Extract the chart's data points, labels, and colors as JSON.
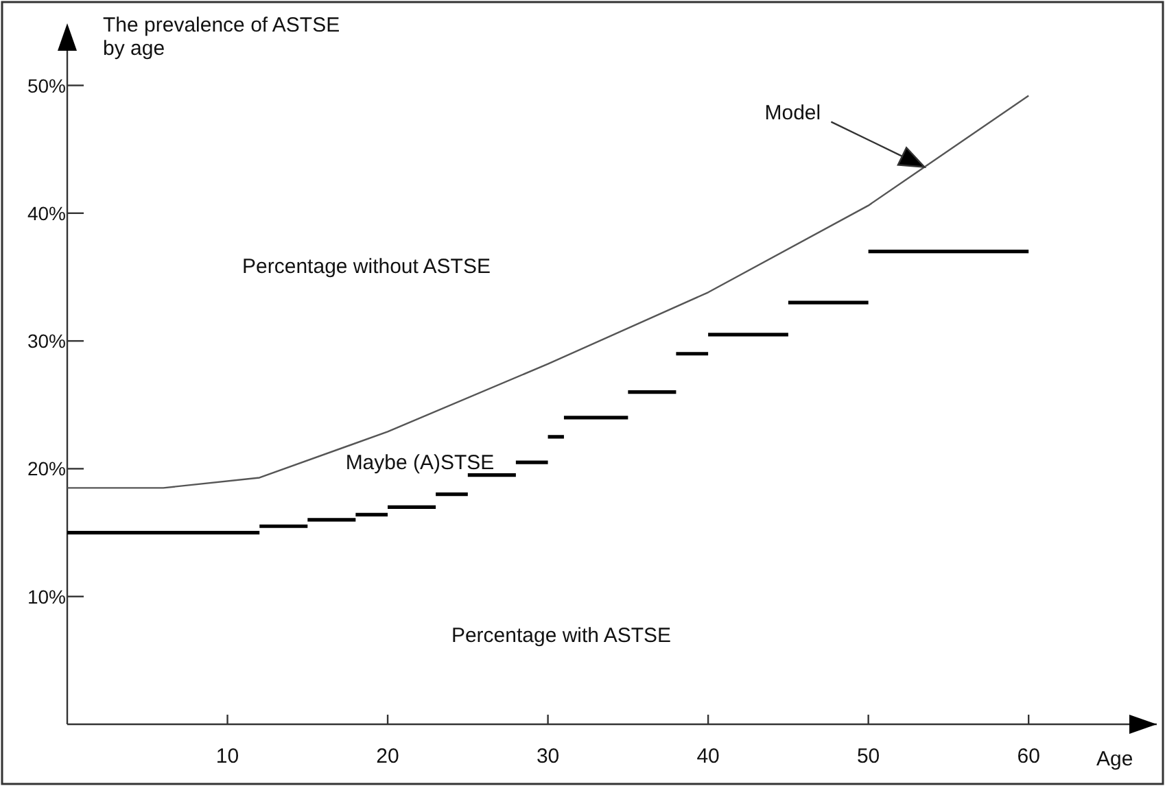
{
  "chart_data": {
    "type": "line",
    "ylabel": "The prevalence of ASTSE\nby age",
    "xlabel": "Age",
    "xlim": [
      0,
      68
    ],
    "ylim": [
      0,
      54
    ],
    "xticks": [
      10,
      20,
      30,
      40,
      50,
      60
    ],
    "yticks": [
      {
        "value": 10,
        "label": "10%"
      },
      {
        "value": 20,
        "label": "20%"
      },
      {
        "value": 30,
        "label": "30%"
      },
      {
        "value": 40,
        "label": "40%"
      },
      {
        "value": 50,
        "label": "50%"
      }
    ],
    "grid": false,
    "legend": false,
    "marker": "none",
    "series": [
      {
        "type": "line",
        "name": "Model",
        "color": "#555555",
        "line_style": "solid",
        "x": [
          0,
          6,
          12,
          20,
          30,
          40,
          50,
          60
        ],
        "values": [
          18.5,
          18.5,
          19.3,
          22.9,
          28.2,
          33.8,
          40.6,
          49.2
        ]
      },
      {
        "type": "step",
        "color": "#000000",
        "line_style": "solid",
        "x": [
          0,
          12,
          null,
          12,
          15,
          null,
          15,
          18,
          null,
          18,
          20,
          null,
          20,
          23,
          null,
          23,
          25,
          null,
          25,
          28,
          null,
          28,
          30,
          null,
          30,
          31,
          null,
          31,
          35,
          null,
          35,
          38,
          null,
          38,
          40,
          null,
          40,
          45,
          null,
          45,
          50,
          null,
          50,
          60
        ],
        "values": [
          15.0,
          15.0,
          null,
          15.5,
          15.5,
          null,
          16.0,
          16.0,
          null,
          16.4,
          16.4,
          null,
          17.0,
          17.0,
          null,
          18.0,
          18.0,
          null,
          19.5,
          19.5,
          null,
          20.5,
          20.5,
          null,
          22.5,
          22.5,
          null,
          24.0,
          24.0,
          null,
          26.0,
          26.0,
          null,
          29.0,
          29.0,
          null,
          30.5,
          30.5,
          null,
          33.0,
          33.0,
          null,
          37.0,
          37.0
        ]
      }
    ],
    "annotations": [
      "Percentage without ASTSE",
      "Maybe (A)STSE",
      "Percentage with ASTSE"
    ]
  }
}
